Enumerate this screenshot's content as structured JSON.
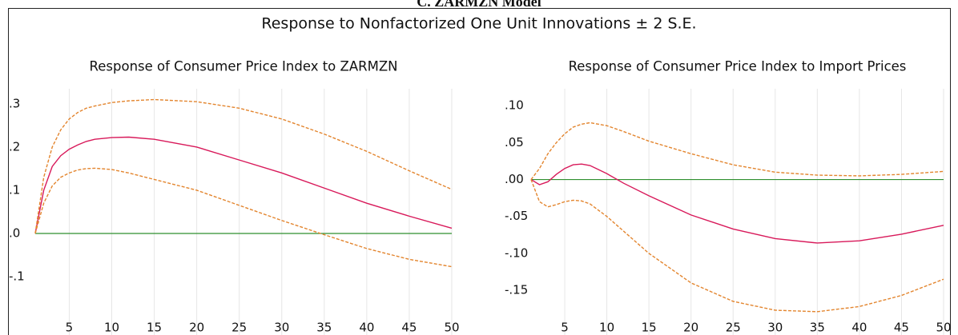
{
  "heading": "C. ZARMZN Model",
  "title": "Response to Nonfactorized One Unit Innovations ± 2 S.E.",
  "chart_data": [
    {
      "type": "line",
      "title": "Response of Consumer Price Index to ZARMZN",
      "x": [
        1,
        2,
        3,
        4,
        5,
        6,
        7,
        8,
        10,
        12,
        15,
        20,
        25,
        30,
        35,
        40,
        45,
        50
      ],
      "xlim": [
        1,
        50
      ],
      "xticks": [
        5,
        10,
        15,
        20,
        25,
        30,
        35,
        40,
        45,
        50
      ],
      "ylim": [
        -0.2,
        0.335
      ],
      "yticks": [
        {
          "value": 0.3,
          "label": ".3"
        },
        {
          "value": 0.2,
          "label": ".2"
        },
        {
          "value": 0.1,
          "label": ".1"
        },
        {
          "value": 0,
          "label": ".0"
        },
        {
          "value": -0.1,
          "label": "-.1"
        }
      ],
      "grid": "x",
      "series": [
        {
          "color": "#d8195a",
          "dashed": false,
          "values": [
            0,
            0.1,
            0.155,
            0.18,
            0.195,
            0.205,
            0.213,
            0.218,
            0.222,
            0.223,
            0.218,
            0.2,
            0.17,
            0.14,
            0.105,
            0.07,
            0.04,
            0.012
          ]
        },
        {
          "color": "#e3852e",
          "dashed": true,
          "values": [
            0,
            0.13,
            0.2,
            0.24,
            0.265,
            0.28,
            0.29,
            0.295,
            0.303,
            0.307,
            0.31,
            0.305,
            0.29,
            0.265,
            0.23,
            0.19,
            0.145,
            0.102
          ]
        },
        {
          "color": "#e3852e",
          "dashed": true,
          "values": [
            0,
            0.07,
            0.11,
            0.13,
            0.14,
            0.147,
            0.15,
            0.151,
            0.148,
            0.14,
            0.125,
            0.1,
            0.065,
            0.03,
            -0.003,
            -0.035,
            -0.06,
            -0.077
          ]
        }
      ]
    },
    {
      "type": "line",
      "title": "Response of Consumer Price Index to Import Prices",
      "x": [
        1,
        2,
        3,
        4,
        5,
        6,
        7,
        8,
        10,
        12,
        15,
        20,
        25,
        30,
        35,
        40,
        45,
        50
      ],
      "xlim": [
        1,
        50
      ],
      "xticks": [
        5,
        10,
        15,
        20,
        25,
        30,
        35,
        40,
        45,
        50
      ],
      "ylim": [
        -0.19,
        0.123
      ],
      "yticks": [
        {
          "value": 0.1,
          "label": ".10"
        },
        {
          "value": 0.05,
          "label": ".05"
        },
        {
          "value": 0,
          "label": ".00"
        },
        {
          "value": -0.05,
          "label": "-.05"
        },
        {
          "value": -0.1,
          "label": "-.10"
        },
        {
          "value": -0.15,
          "label": "-.15"
        }
      ],
      "grid": "x",
      "series": [
        {
          "color": "#d8195a",
          "dashed": false,
          "values": [
            0,
            -0.007,
            -0.003,
            0.007,
            0.015,
            0.02,
            0.021,
            0.019,
            0.008,
            -0.005,
            -0.022,
            -0.048,
            -0.067,
            -0.08,
            -0.086,
            -0.083,
            -0.074,
            -0.062
          ]
        },
        {
          "color": "#e3852e",
          "dashed": true,
          "values": [
            0,
            0.015,
            0.035,
            0.05,
            0.062,
            0.071,
            0.075,
            0.077,
            0.073,
            0.065,
            0.052,
            0.035,
            0.02,
            0.01,
            0.006,
            0.005,
            0.007,
            0.011
          ]
        },
        {
          "color": "#e3852e",
          "dashed": true,
          "values": [
            0,
            -0.03,
            -0.037,
            -0.034,
            -0.03,
            -0.028,
            -0.029,
            -0.033,
            -0.05,
            -0.07,
            -0.1,
            -0.14,
            -0.165,
            -0.177,
            -0.179,
            -0.172,
            -0.157,
            -0.135
          ]
        }
      ]
    }
  ]
}
